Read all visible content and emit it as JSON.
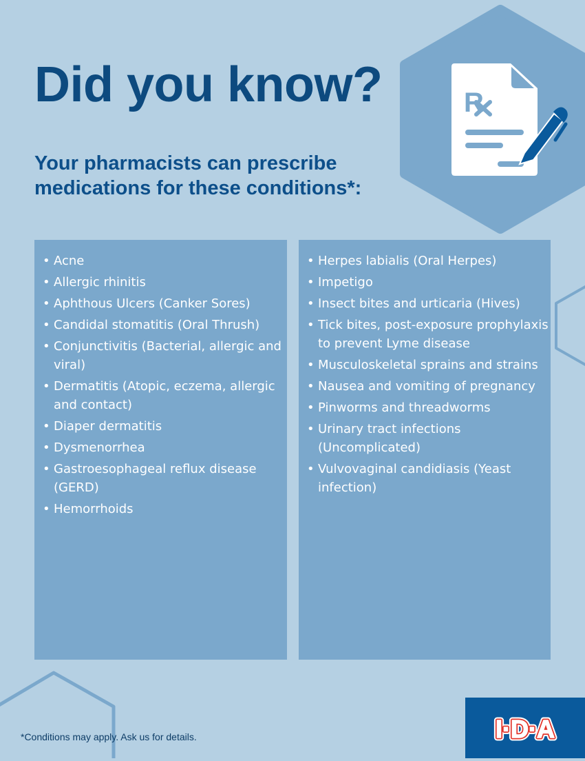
{
  "title": "Did you know?",
  "subtitle": "Your pharmacists can prescribe medications for these conditions*:",
  "left_conditions": [
    "Acne",
    "Allergic rhinitis",
    "Aphthous Ulcers (Canker Sores)",
    "Candidal stomatitis (Oral Thrush)",
    "Conjunctivitis (Bacterial, allergic and viral)",
    "Dermatitis (Atopic, eczema, allergic and contact)",
    "Diaper dermatitis",
    "Dysmenorrhea",
    "Gastroesophageal reflux disease (GERD)",
    "Hemorrhoids"
  ],
  "right_conditions": [
    "Herpes labialis (Oral Herpes)",
    "Impetigo",
    "Insect bites and urticaria (Hives)",
    "Tick bites, post-exposure prophylaxis to prevent Lyme disease",
    "Musculoskeletal sprains and strains",
    "Nausea and vomiting of pregnancy",
    "Pinworms and threadworms",
    "Urinary tract infections (Uncomplicated)",
    "Vulvovaginal candidiasis (Yeast infection)"
  ],
  "footnote": "*Conditions may apply. Ask us for details.",
  "logo_text": "I·D·A",
  "icons": [
    "prescription-document-icon",
    "pen-icon"
  ],
  "colors": {
    "background": "#b5d0e3",
    "panel": "#7ba8cc",
    "heading": "#0d4a7f",
    "brand": "#0a5a9c",
    "logo_red": "#e2342b"
  }
}
